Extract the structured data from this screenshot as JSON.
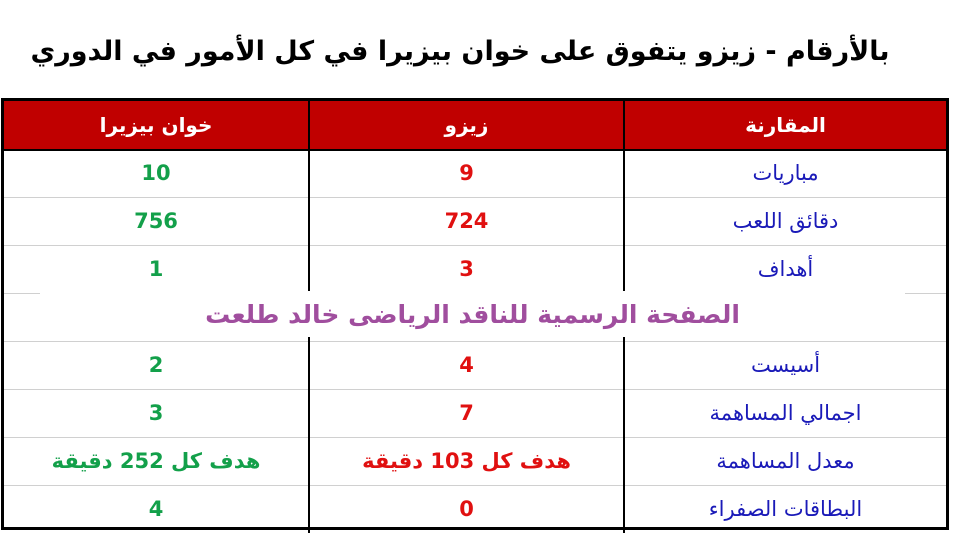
{
  "title": "بالأرقام - زيزو يتفوق على خوان بيزيرا في كل الأمور في الدوري",
  "header": {
    "comparison": "المقارنة",
    "zizo": "زيزو",
    "pezzella": "خوان بيزيرا"
  },
  "rows": [
    {
      "label": "مباريات",
      "zizo": "9",
      "pezzella": "10"
    },
    {
      "label": "دقائق اللعب",
      "zizo": "724",
      "pezzella": "756"
    },
    {
      "label": "أهداف",
      "zizo": "3",
      "pezzella": "1"
    },
    {
      "label": "",
      "zizo": "",
      "pezzella": ""
    },
    {
      "label": "أسيست",
      "zizo": "4",
      "pezzella": "2"
    },
    {
      "label": "اجمالي المساهمة",
      "zizo": "7",
      "pezzella": "3"
    },
    {
      "label": "معدل المساهمة",
      "zizo": "هدف كل 103 دقيقة",
      "pezzella": "هدف كل 252 دقيقة"
    },
    {
      "label": "البطاقات الصفراء",
      "zizo": "0",
      "pezzella": "4"
    }
  ],
  "watermark": "الصفحة الرسمية للناقد الرياضى خالد طلعت",
  "colors": {
    "header_bg": "#c00000",
    "label": "#1a1ab8",
    "zizo": "#e01010",
    "pezzella": "#13a04a",
    "watermark": "#a04e9e"
  }
}
